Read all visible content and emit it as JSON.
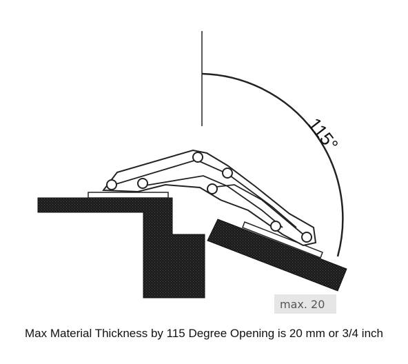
{
  "diagram": {
    "angle_label": "115°",
    "max_label": "max. 20",
    "caption": "Max Material Thickness by 115 Degree Opening is 20 mm or 3/4 inch"
  },
  "colors": {
    "material": "#1a1a1a",
    "line": "#222222",
    "badge": "#e6e6e6"
  }
}
